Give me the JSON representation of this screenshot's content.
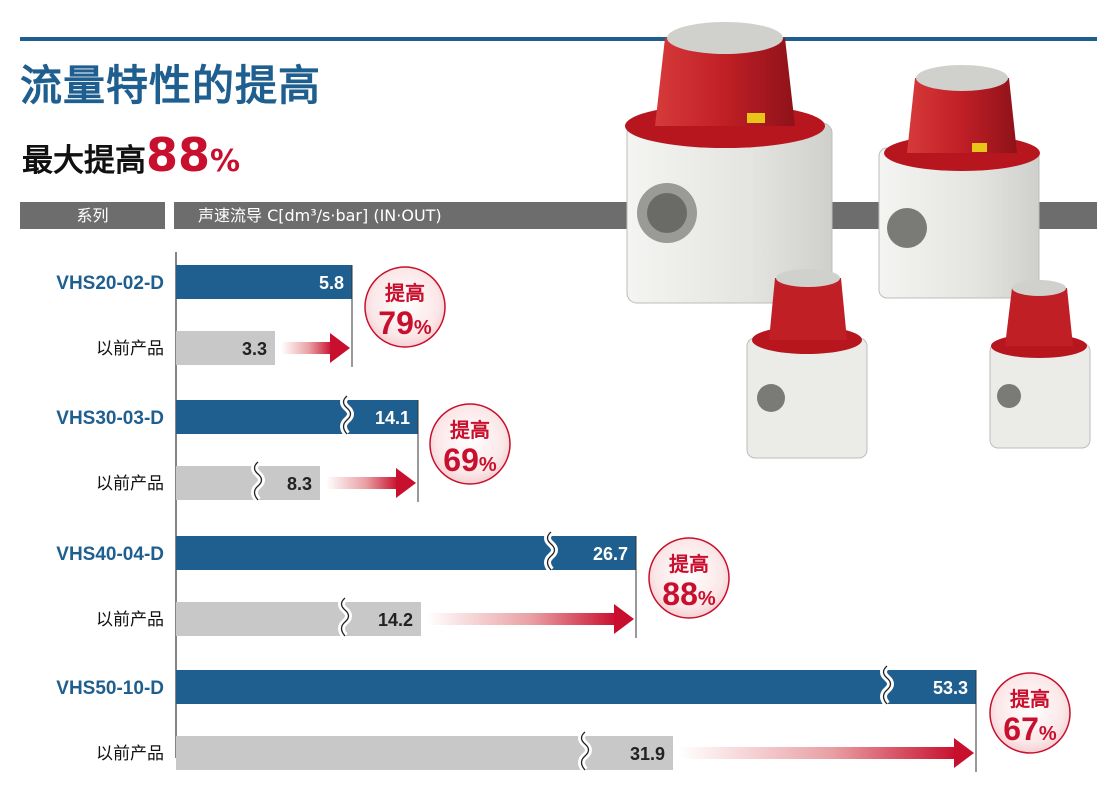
{
  "title": "流量特性的提高",
  "subtitle": {
    "prefix": "最大提高",
    "value": "88",
    "unit": "%"
  },
  "header": {
    "series_label": "系列",
    "metric_label": "声速流导 C[dm³/s·bar] (IN·OUT)"
  },
  "colors": {
    "accent": "#1f5f8f",
    "new_bar": "#1f5f8f",
    "old_bar": "#c8c8c8",
    "improvement": "#c8102e",
    "header": "#6d6d6d"
  },
  "chart_data": {
    "type": "bar",
    "orientation": "horizontal",
    "categories": [
      "VHS20-02-D",
      "VHS30-03-D",
      "VHS40-04-D",
      "VHS50-10-D"
    ],
    "series": [
      {
        "name": "",
        "values": [
          5.8,
          14.1,
          26.7,
          53.3
        ]
      },
      {
        "name": "以前产品",
        "values": [
          3.3,
          8.3,
          14.2,
          31.9
        ]
      }
    ],
    "value_labels_new": [
      "5.8",
      "14.1",
      "26.7",
      "53.3"
    ],
    "value_labels_old": [
      "3.3",
      "8.3",
      "14.2",
      "31.9"
    ],
    "axis_breaks": [
      false,
      true,
      true,
      true
    ],
    "improvements": [
      {
        "label": "提高",
        "value": "79",
        "unit": "%"
      },
      {
        "label": "提高",
        "value": "69",
        "unit": "%"
      },
      {
        "label": "提高",
        "value": "88",
        "unit": "%"
      },
      {
        "label": "提高",
        "value": "67",
        "unit": "%"
      }
    ]
  }
}
